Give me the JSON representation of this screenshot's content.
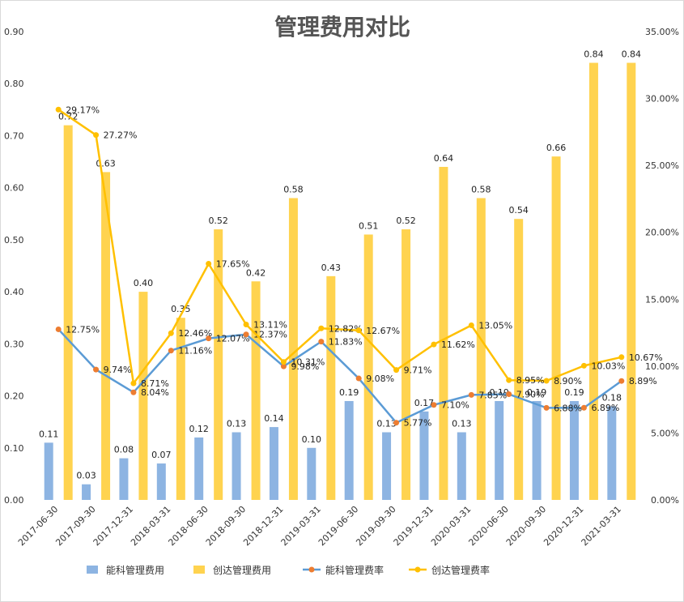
{
  "chart_data": {
    "type": "bar",
    "title": "管理费用对比",
    "categories": [
      "2017-06-30",
      "2017-09-30",
      "2017-12-31",
      "2018-03-31",
      "2018-06-30",
      "2018-09-30",
      "2018-12-31",
      "2019-03-31",
      "2019-06-30",
      "2019-09-30",
      "2019-12-31",
      "2020-03-31",
      "2020-06-30",
      "2020-09-30",
      "2020-12-31",
      "2021-03-31"
    ],
    "ylim": [
      0,
      0.9
    ],
    "y_ticks": [
      "0.00",
      "0.10",
      "0.20",
      "0.30",
      "0.40",
      "0.50",
      "0.60",
      "0.70",
      "0.80",
      "0.90"
    ],
    "y2lim": [
      0,
      0.35
    ],
    "y2_ticks": [
      "0.00%",
      "5.00%",
      "10.00%",
      "15.00%",
      "20.00%",
      "25.00%",
      "30.00%",
      "35.00%"
    ],
    "grid": false,
    "legend_position": "bottom",
    "series": [
      {
        "name": "能科管理费用",
        "type": "bar",
        "axis": "left",
        "color": "#8db4e2",
        "values": [
          0.11,
          0.03,
          0.08,
          0.07,
          0.12,
          0.13,
          0.14,
          0.1,
          0.19,
          0.13,
          0.17,
          0.13,
          0.19,
          0.19,
          0.19,
          0.18
        ],
        "labels": [
          "0.11",
          "0.03",
          "0.08",
          "0.07",
          "0.12",
          "0.13",
          "0.14",
          "0.10",
          "0.19",
          "0.13",
          "0.17",
          "0.13",
          "0.19",
          "0.19",
          "0.19",
          "0.18"
        ]
      },
      {
        "name": "创达管理费用",
        "type": "bar",
        "axis": "left",
        "color": "#ffd34f",
        "values": [
          0.72,
          0.63,
          0.4,
          0.35,
          0.52,
          0.42,
          0.58,
          0.43,
          0.51,
          0.52,
          0.64,
          0.58,
          0.54,
          0.66,
          0.84,
          0.84
        ],
        "labels": [
          "0.72",
          "0.63",
          "0.40",
          "0.35",
          "0.52",
          "0.42",
          "0.58",
          "0.43",
          "0.51",
          "0.52",
          "0.64",
          "0.58",
          "0.54",
          "0.66",
          "0.84",
          "0.84"
        ]
      },
      {
        "name": "能科管理费率",
        "type": "line",
        "axis": "right",
        "color": "#5b9bd5",
        "marker_color": "#ed7d31",
        "values": [
          0.1275,
          0.0974,
          0.0804,
          0.1116,
          0.1207,
          0.1237,
          0.0998,
          0.1183,
          0.0908,
          0.0577,
          0.071,
          0.0785,
          0.079,
          0.0688,
          0.0689,
          0.0889
        ],
        "labels": [
          "12.75%",
          "9.74%",
          "8.04%",
          "11.16%",
          "12.07%",
          "12.37%",
          "9.98%",
          "11.83%",
          "9.08%",
          "5.77%",
          "7.10%",
          "7.85%",
          "7.90%",
          "6.88%",
          "6.89%",
          "8.89%"
        ]
      },
      {
        "name": "创达管理费率",
        "type": "line",
        "axis": "right",
        "color": "#ffc000",
        "marker_color": "#ffc000",
        "values": [
          0.2917,
          0.2727,
          0.0871,
          0.1246,
          0.1765,
          0.1311,
          0.1031,
          0.1282,
          0.1267,
          0.0971,
          0.1162,
          0.1305,
          0.0895,
          0.089,
          0.1003,
          0.1067
        ],
        "labels": [
          "29.17%",
          "27.27%",
          "8.71%",
          "12.46%",
          "17.65%",
          "13.11%",
          "10.31%",
          "12.82%",
          "12.67%",
          "9.71%",
          "11.62%",
          "13.05%",
          "8.95%",
          "8.90%",
          "10.03%",
          "10.67%"
        ]
      }
    ]
  }
}
